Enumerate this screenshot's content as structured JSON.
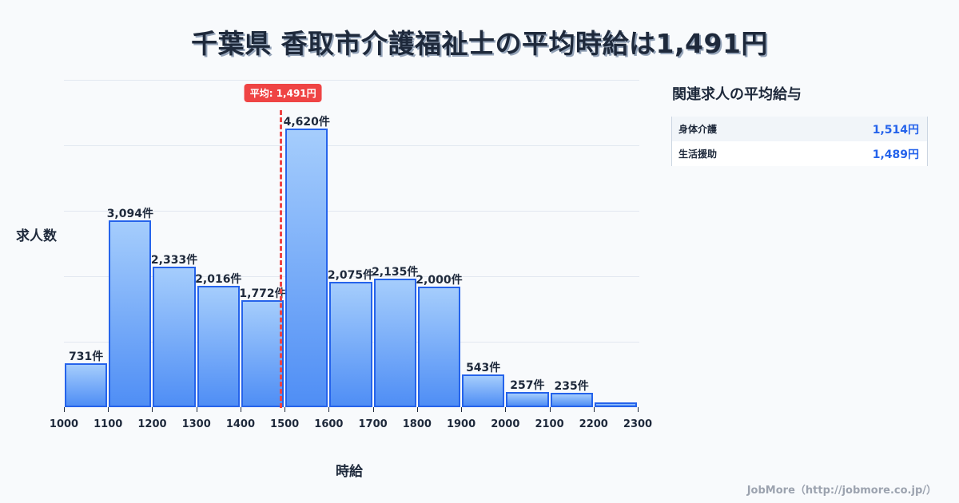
{
  "title": "千葉県 香取市介護福祉士の平均時給は1,491円",
  "axes": {
    "ylabel": "求人数",
    "xlabel": "時給"
  },
  "mean": {
    "value": 1491,
    "label": "平均: 1,491円",
    "color": "#ef4444"
  },
  "colors": {
    "bar_top": "#a5cdfc",
    "bar_bottom": "#4f8ef5",
    "bar_border": "#2563eb",
    "accent_value": "#2563eb"
  },
  "related": {
    "title": "関連求人の平均給与",
    "rows": [
      {
        "name": "身体介護",
        "value": "1,514円"
      },
      {
        "name": "生活援助",
        "value": "1,489円"
      }
    ]
  },
  "footer": "JobMore（http://jobmore.co.jp/）",
  "chart_data": {
    "type": "bar",
    "title": "千葉県 香取市介護福祉士の平均時給は1,491円",
    "xlabel": "時給",
    "ylabel": "求人数",
    "x_ticks": [
      1000,
      1100,
      1200,
      1300,
      1400,
      1500,
      1600,
      1700,
      1800,
      1900,
      2000,
      2100,
      2200,
      2300
    ],
    "xlim": [
      1000,
      2300
    ],
    "categories": [
      "1000-1100",
      "1100-1200",
      "1200-1300",
      "1300-1400",
      "1400-1500",
      "1500-1600",
      "1600-1700",
      "1700-1800",
      "1800-1900",
      "1900-2000",
      "2000-2100",
      "2100-2200",
      "2200-2300"
    ],
    "bins": [
      [
        1000,
        1100
      ],
      [
        1100,
        1200
      ],
      [
        1200,
        1300
      ],
      [
        1300,
        1400
      ],
      [
        1400,
        1500
      ],
      [
        1500,
        1600
      ],
      [
        1600,
        1700
      ],
      [
        1700,
        1800
      ],
      [
        1800,
        1900
      ],
      [
        1900,
        2000
      ],
      [
        2000,
        2100
      ],
      [
        2100,
        2200
      ],
      [
        2200,
        2300
      ]
    ],
    "values": [
      731,
      3094,
      2333,
      2016,
      1772,
      4620,
      2075,
      2135,
      2000,
      543,
      257,
      235,
      80
    ],
    "labels": [
      "731件",
      "3,094件",
      "2,333件",
      "2,016件",
      "1,772件",
      "4,620件",
      "2,075件",
      "2,135件",
      "2,000件",
      "543件",
      "257件",
      "235件",
      ""
    ],
    "annotations": [
      {
        "type": "vline",
        "x": 1491,
        "label": "平均: 1,491円"
      }
    ],
    "grid": true,
    "legend": null
  }
}
